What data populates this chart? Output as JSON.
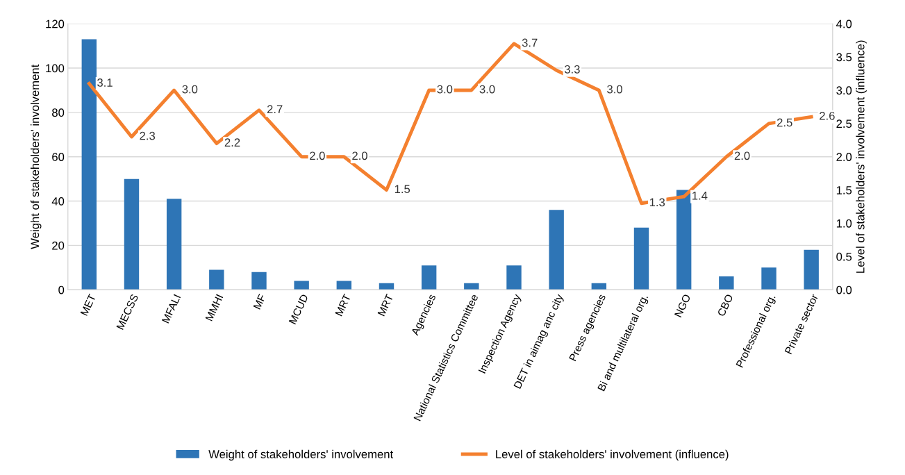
{
  "chart_data": {
    "type": "bar",
    "ylabel": "Weight of stakeholders' involvement",
    "y2label": "Level of stakeholders' involvement (influence)",
    "categories": [
      "MET",
      "MECSS",
      "MFALI",
      "MMHI",
      "MF",
      "MCUD",
      "MRT",
      "MRT",
      "Agencies",
      "National Statistics Committee",
      "Inspection Agency",
      "DET in aimag anc city",
      "Press agencies",
      "Bi and multilateral org.",
      "NGO",
      "CBO",
      "Professional org.",
      "Private sector"
    ],
    "series": [
      {
        "name": "Weight of stakeholders' involvement",
        "color": "#2e75b6",
        "values": [
          113,
          50,
          41,
          9,
          8,
          4,
          4,
          3,
          11,
          3,
          11,
          36,
          3,
          28,
          45,
          6,
          10,
          18
        ]
      },
      {
        "name": "Level of stakeholders' involvement (influence)",
        "type": "line",
        "axis": "y2",
        "color": "#f4802f",
        "values": [
          3.1,
          2.3,
          3.0,
          2.2,
          2.7,
          2.0,
          2.0,
          1.5,
          3.0,
          3.0,
          3.7,
          3.3,
          3.0,
          1.3,
          1.4,
          2.0,
          2.5,
          2.6
        ],
        "value_labels": [
          "3.1",
          "2.3",
          "3.0",
          "2.2",
          "2.7",
          "2.0",
          "2.0",
          "1.5",
          "3.0",
          "3.0",
          "3.7",
          "3.3",
          "3.0",
          "1.3",
          "1.4",
          "2.0",
          "2.5",
          "2.6"
        ]
      }
    ],
    "ylim": [
      0,
      120
    ],
    "yticks": [
      0,
      20,
      40,
      60,
      80,
      100,
      120
    ],
    "y2lim": [
      0,
      4
    ],
    "y2ticks": [
      {
        "value": 0,
        "label": "0.0"
      },
      {
        "value": 0.5,
        "label": "0.5"
      },
      {
        "value": 1,
        "label": "1.0"
      },
      {
        "value": 1.5,
        "label": "1.5"
      },
      {
        "value": 2,
        "label": "2.0"
      },
      {
        "value": 2.5,
        "label": "2.5"
      },
      {
        "value": 3,
        "label": "3.0"
      },
      {
        "value": 3.5,
        "label": "3.5"
      },
      {
        "value": 4,
        "label": "4.0"
      }
    ],
    "grid": "y",
    "legend": "bottom",
    "marker": "none",
    "line_style": "solid"
  }
}
